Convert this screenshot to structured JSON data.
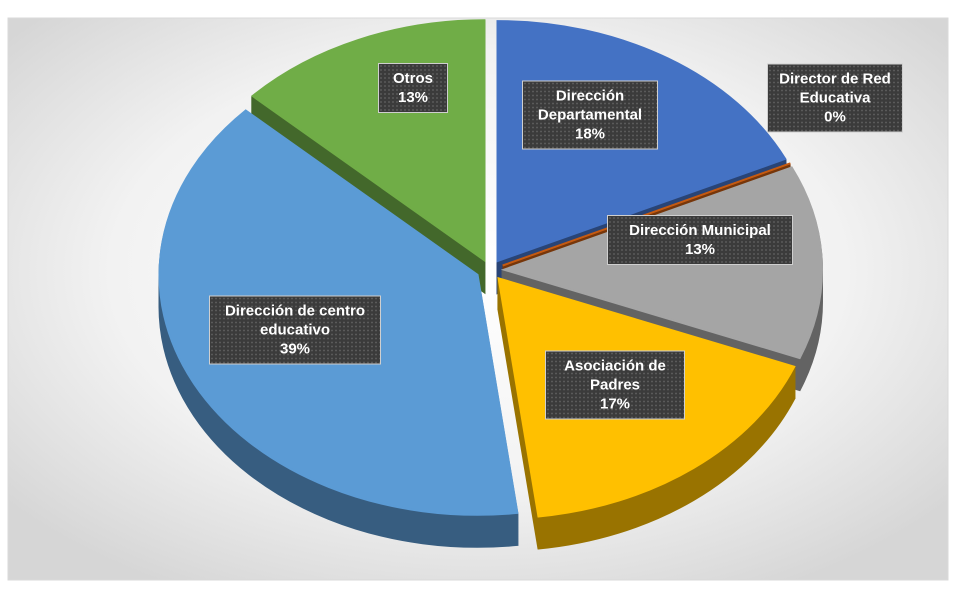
{
  "chart_data": {
    "type": "pie",
    "categories": [
      "Dirección Departamental",
      "Director de Red Educativa",
      "Dirección Municipal",
      "Asociación de Padres",
      "Dirección de centro educativo",
      "Otros"
    ],
    "values": [
      18,
      0,
      13,
      17,
      39,
      13
    ],
    "value_labels": [
      "18%",
      "0%",
      "13%",
      "17%",
      "39%",
      "13%"
    ],
    "colors": [
      "#4472c4",
      "#c55a11",
      "#a5a5a5",
      "#ffc000",
      "#5b9bd5",
      "#70ad47"
    ]
  }
}
